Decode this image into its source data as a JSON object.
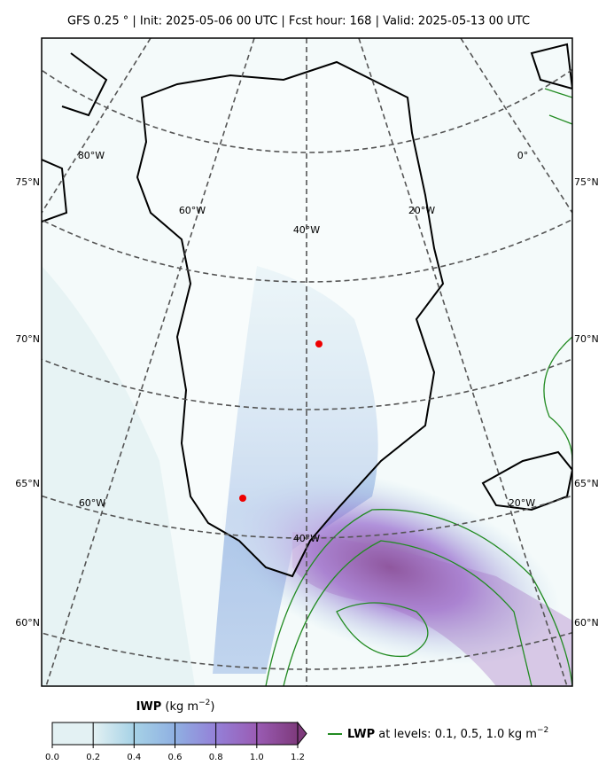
{
  "title": "GFS 0.25 ° | Init: 2025-05-06 00 UTC | Fcst hour: 168 | Valid: 2025-05-13 00 UTC",
  "map": {
    "lat_labels_left": [
      "75°N",
      "70°N",
      "65°N",
      "60°N"
    ],
    "lat_labels_right": [
      "75°N",
      "70°N",
      "65°N",
      "60°N"
    ],
    "lon_labels": [
      "80°W",
      "0°",
      "60°W",
      "20°W",
      "40°W",
      "60°W",
      "20°W",
      "40°W"
    ]
  },
  "colorbar": {
    "label_bold": "IWP",
    "label_unit": "(kg m",
    "label_exp": "−2",
    "label_close": ")",
    "lim": [
      0,
      1.2
    ],
    "ticks": [
      {
        "value": 0,
        "label": "0.0"
      },
      {
        "value": 0.2,
        "label": "0.2"
      },
      {
        "value": 0.4,
        "label": "0.4"
      },
      {
        "value": 0.6,
        "label": "0.6"
      },
      {
        "value": 0.8,
        "label": "0.8"
      },
      {
        "value": 1,
        "label": "1.0"
      },
      {
        "value": 1.2,
        "label": "1.2"
      }
    ],
    "colors": [
      "#e3f1f3",
      "#a6d2e6",
      "#8fb0e2",
      "#9480d8",
      "#9a5cb4",
      "#7e3a7c"
    ]
  },
  "legend": {
    "name": "LWP",
    "text": "at levels: 0.1, 0.5, 1.0  kg m",
    "exp": "−2",
    "color": "#228b22"
  }
}
